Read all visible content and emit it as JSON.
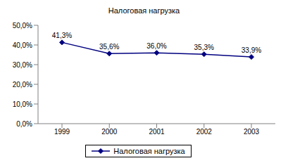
{
  "chart_data": {
    "type": "line",
    "title": "Налоговая нагрузка",
    "categories": [
      "1999",
      "2000",
      "2001",
      "2002",
      "2003"
    ],
    "series": [
      {
        "name": "Налоговая нагрузка",
        "color": "#000080",
        "marker": "diamond",
        "values": [
          41.3,
          35.6,
          36.0,
          35.3,
          33.9
        ],
        "value_labels": [
          "41,3%",
          "35,6%",
          "36,0%",
          "35,3%",
          "33,9%"
        ]
      }
    ],
    "ylim": [
      0,
      50
    ],
    "yticks": [
      {
        "value": 0,
        "label": "0,0%"
      },
      {
        "value": 10,
        "label": "10,0%"
      },
      {
        "value": 20,
        "label": "20,0%"
      },
      {
        "value": 30,
        "label": "30,0%"
      },
      {
        "value": 40,
        "label": "40,0%"
      },
      {
        "value": 50,
        "label": "50,0%"
      }
    ],
    "grid": false,
    "legend": "bottom",
    "data_labels": true
  }
}
